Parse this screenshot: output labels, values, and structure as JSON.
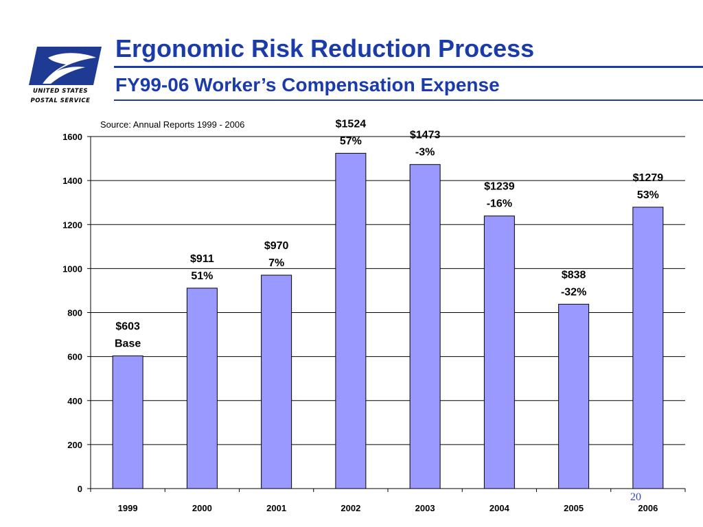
{
  "logo": {
    "line1": "UNITED STATES",
    "line2": "POSTAL SERVICE",
    "colors": {
      "blue": "#1f3a93"
    }
  },
  "header": {
    "title": "Ergonomic Risk Reduction Process",
    "subtitle": "FY99-06 Worker’s Compensation Expense"
  },
  "source_note": "Source: Annual Reports 1999 - 2006",
  "page_number": "20",
  "chart_data": {
    "type": "bar",
    "categories": [
      "1999",
      "2000",
      "2001",
      "2002",
      "2003",
      "2004",
      "2005",
      "2006"
    ],
    "values": [
      603,
      911,
      970,
      1524,
      1473,
      1239,
      838,
      1279
    ],
    "value_labels": [
      "$603",
      "$911",
      "$970",
      "$1524",
      "$1473",
      "$1239",
      "$838",
      "$1279"
    ],
    "change_labels": [
      "Base",
      "51%",
      "7%",
      "57%",
      "-3%",
      "-16%",
      "-32%",
      "53%"
    ],
    "ylim": [
      0,
      1600
    ],
    "yticks": [
      0,
      200,
      400,
      600,
      800,
      1000,
      1200,
      1400,
      1600
    ],
    "grid": true,
    "colors": {
      "bar_fill": "#9999ff",
      "bar_stroke": "#000000",
      "gridline": "#000000"
    }
  }
}
